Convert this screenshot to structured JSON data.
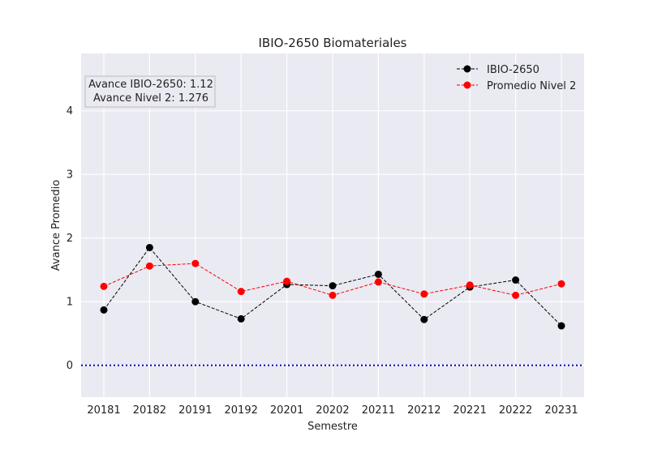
{
  "chart_data": {
    "type": "line",
    "title": "IBIO-2650 Biomateriales",
    "xlabel": "Semestre",
    "ylabel": "Avance Promedio",
    "categories": [
      "20181",
      "20182",
      "20191",
      "20192",
      "20201",
      "20202",
      "20211",
      "20212",
      "20221",
      "20222",
      "20231"
    ],
    "ylim": [
      -0.5,
      4.9
    ],
    "yticks": [
      0,
      1,
      2,
      3,
      4
    ],
    "grid": true,
    "legend_position": "top-right",
    "series": [
      {
        "name": "IBIO-2650",
        "color": "#000000",
        "line_style": "dashed",
        "marker": "circle",
        "values": [
          0.87,
          1.85,
          1.0,
          0.73,
          1.27,
          1.25,
          1.43,
          0.72,
          1.23,
          1.34,
          0.62
        ]
      },
      {
        "name": "Promedio Nivel 2",
        "color": "#ff0000",
        "line_style": "dashed",
        "marker": "circle",
        "values": [
          1.24,
          1.56,
          1.6,
          1.16,
          1.32,
          1.1,
          1.31,
          1.12,
          1.26,
          1.1,
          1.28
        ]
      }
    ],
    "reference_line": {
      "y": 0,
      "color": "#0000cc",
      "style": "dotted"
    },
    "annotation": {
      "line1": "Avance IBIO-2650: 1.12",
      "line2": "Avance Nivel 2: 1.276"
    }
  }
}
